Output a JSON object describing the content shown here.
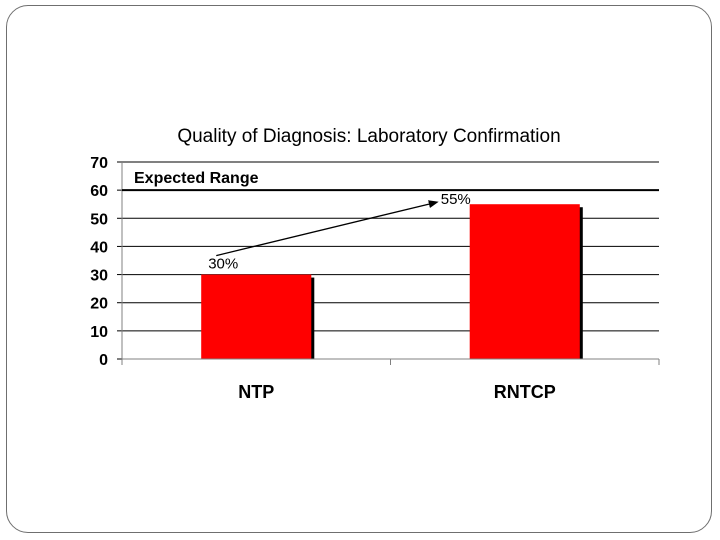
{
  "chart_data": {
    "type": "bar",
    "title": "Quality of Diagnosis: Laboratory Confirmation",
    "categories": [
      "NTP",
      "RNTCP"
    ],
    "values": [
      30,
      55
    ],
    "ylim": [
      0,
      70
    ],
    "yticks": [
      0,
      10,
      20,
      30,
      40,
      50,
      60,
      70
    ],
    "xlabel": "",
    "ylabel": "",
    "grid": true,
    "bar_color": "#ff0000",
    "annotations": {
      "expected_range": {
        "label": "Expected Range",
        "value": 60
      },
      "labels": [
        {
          "text": "30%",
          "value": 30
        },
        {
          "text": "55%",
          "value": 55
        }
      ]
    }
  }
}
